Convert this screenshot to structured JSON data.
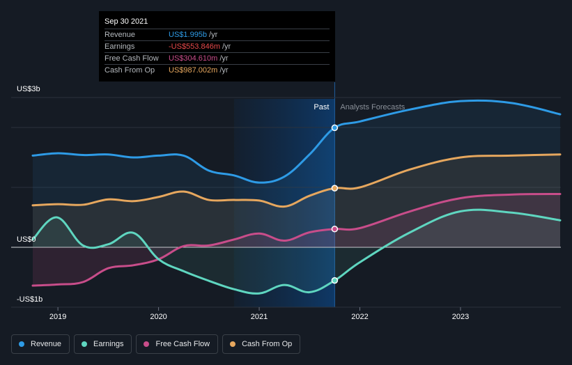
{
  "tooltip": {
    "date": "Sep 30 2021",
    "rows": [
      {
        "label": "Revenue",
        "value": "US$1.995b",
        "unit": "/yr",
        "color": "#2e9be6"
      },
      {
        "label": "Earnings",
        "value": "-US$553.846m",
        "unit": "/yr",
        "color": "#e8494a"
      },
      {
        "label": "Free Cash Flow",
        "value": "US$304.610m",
        "unit": "/yr",
        "color": "#c84d8a"
      },
      {
        "label": "Cash From Op",
        "value": "US$987.002m",
        "unit": "/yr",
        "color": "#e6a75e"
      }
    ]
  },
  "legend": {
    "items": [
      {
        "label": "Revenue",
        "color": "#2e9be6"
      },
      {
        "label": "Earnings",
        "color": "#5fd6c0"
      },
      {
        "label": "Free Cash Flow",
        "color": "#c84d8a"
      },
      {
        "label": "Cash From Op",
        "color": "#e6a75e"
      }
    ]
  },
  "chart_data": {
    "type": "line",
    "title": "",
    "y_unit": "US$ billions",
    "y_ticks": [
      {
        "label": "US$3b",
        "value": 2.5
      },
      {
        "label": "US$0",
        "value": 0
      },
      {
        "label": "-US$1b",
        "value": -1
      }
    ],
    "ylim": [
      -1,
      2.5
    ],
    "xlim": [
      2018.75,
      2023.99
    ],
    "x_ticks": [
      {
        "label": "2019",
        "value": 2019
      },
      {
        "label": "2020",
        "value": 2020
      },
      {
        "label": "2021",
        "value": 2021
      },
      {
        "label": "2022",
        "value": 2022
      },
      {
        "label": "2023",
        "value": 2023
      }
    ],
    "past_label": "Past",
    "forecast_label": "Analysts Forecasts",
    "divider_x": 2021.75,
    "highlight_start_x": 2020.75,
    "series": [
      {
        "name": "Revenue",
        "color": "#2e9be6",
        "x": [
          2018.75,
          2019.0,
          2019.25,
          2019.5,
          2019.75,
          2020.0,
          2020.25,
          2020.5,
          2020.75,
          2021.0,
          2021.25,
          2021.5,
          2021.75,
          2022.0,
          2022.5,
          2023.0,
          2023.5,
          2023.99
        ],
        "values": [
          1.53,
          1.57,
          1.54,
          1.55,
          1.5,
          1.53,
          1.53,
          1.28,
          1.2,
          1.08,
          1.18,
          1.55,
          1.995,
          2.1,
          2.3,
          2.44,
          2.41,
          2.22
        ]
      },
      {
        "name": "Earnings",
        "color": "#5fd6c0",
        "x": [
          2018.75,
          2018.99,
          2019.25,
          2019.5,
          2019.75,
          2020.0,
          2020.25,
          2020.5,
          2020.75,
          2021.0,
          2021.25,
          2021.5,
          2021.75,
          2022.0,
          2022.5,
          2023.0,
          2023.5,
          2023.99
        ],
        "values": [
          0.13,
          0.5,
          0.03,
          0.05,
          0.24,
          -0.2,
          -0.4,
          -0.56,
          -0.7,
          -0.77,
          -0.63,
          -0.75,
          -0.553846,
          -0.25,
          0.25,
          0.6,
          0.58,
          0.45
        ]
      },
      {
        "name": "Free Cash Flow",
        "color": "#c84d8a",
        "x": [
          2018.75,
          2019.0,
          2019.25,
          2019.5,
          2019.75,
          2020.0,
          2020.25,
          2020.5,
          2020.75,
          2021.0,
          2021.25,
          2021.5,
          2021.75,
          2022.0,
          2022.5,
          2023.0,
          2023.5,
          2023.99
        ],
        "values": [
          -0.64,
          -0.62,
          -0.58,
          -0.35,
          -0.3,
          -0.2,
          0.02,
          0.03,
          0.13,
          0.23,
          0.11,
          0.25,
          0.30461,
          0.32,
          0.6,
          0.82,
          0.88,
          0.89
        ]
      },
      {
        "name": "Cash From Op",
        "color": "#e6a75e",
        "x": [
          2018.75,
          2019.0,
          2019.25,
          2019.5,
          2019.75,
          2020.0,
          2020.25,
          2020.5,
          2020.75,
          2021.0,
          2021.25,
          2021.5,
          2021.75,
          2022.0,
          2022.5,
          2023.0,
          2023.5,
          2023.99
        ],
        "values": [
          0.7,
          0.72,
          0.71,
          0.8,
          0.77,
          0.84,
          0.93,
          0.79,
          0.79,
          0.78,
          0.68,
          0.86,
          0.987,
          1.0,
          1.3,
          1.5,
          1.53,
          1.55
        ]
      }
    ],
    "markers": [
      {
        "series": "Revenue",
        "x": 2021.75,
        "value": 1.995
      },
      {
        "series": "Cash From Op",
        "x": 2021.75,
        "value": 0.987
      },
      {
        "series": "Free Cash Flow",
        "x": 2021.75,
        "value": 0.30461
      },
      {
        "series": "Earnings",
        "x": 2021.75,
        "value": -0.553846
      }
    ]
  }
}
